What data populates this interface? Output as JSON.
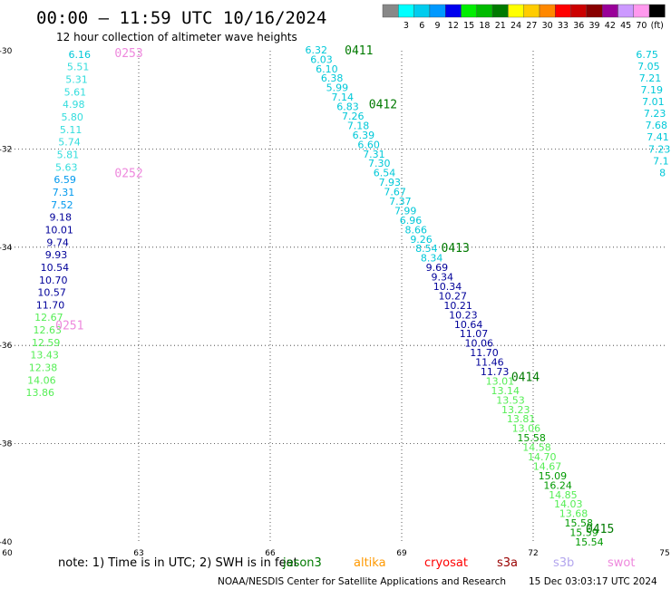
{
  "header": {
    "title": "00:00 – 11:59 UTC 10/16/2024",
    "subtitle": "12 hour collection of altimeter wave heights"
  },
  "footer": {
    "note": "note: 1) Time is in UTC; 2) SWH is in feet",
    "credit": "NOAA/NESDIS Center for Satellite Applications and Research",
    "generated": "15 Dec 03:03:17 UTC 2024"
  },
  "satellites": [
    {
      "name": "jason3",
      "color": "#007a00"
    },
    {
      "name": "altika",
      "color": "#ff9900"
    },
    {
      "name": "cryosat",
      "color": "#ff0000"
    },
    {
      "name": "s3a",
      "color": "#990000"
    },
    {
      "name": "s3b",
      "color": "#b3a6ee"
    },
    {
      "name": "swot",
      "color": "#ee88dd"
    }
  ],
  "chart_data": {
    "type": "scatter",
    "xlim": [
      60,
      75
    ],
    "ylim": [
      -40,
      -30
    ],
    "x_ticks": [
      "60",
      "63",
      "66",
      "69",
      "72",
      "75"
    ],
    "y_ticks": [
      "-30",
      "-32",
      "-34",
      "-36",
      "-38",
      "-40"
    ],
    "grid": true,
    "legend": {
      "placement": "top-right",
      "unit": "(ft)",
      "bins": [
        {
          "label": "",
          "color": "#888888"
        },
        {
          "label": "3",
          "color": "#00ffff"
        },
        {
          "label": "6",
          "color": "#00ccee"
        },
        {
          "label": "9",
          "color": "#0099ff"
        },
        {
          "label": "12",
          "color": "#0000ee"
        },
        {
          "label": "15",
          "color": "#00ee00"
        },
        {
          "label": "18",
          "color": "#00bb00"
        },
        {
          "label": "21",
          "color": "#007a00"
        },
        {
          "label": "24",
          "color": "#ffff00"
        },
        {
          "label": "27",
          "color": "#ffcc00"
        },
        {
          "label": "30",
          "color": "#ff8800"
        },
        {
          "label": "33",
          "color": "#ff0000"
        },
        {
          "label": "36",
          "color": "#cc0000"
        },
        {
          "label": "39",
          "color": "#880000"
        },
        {
          "label": "42",
          "color": "#990099"
        },
        {
          "label": "45",
          "color": "#cc99ff"
        },
        {
          "label": "70",
          "color": "#ff99ee"
        },
        {
          "label": "",
          "color": "#000000"
        }
      ]
    },
    "time_labels": [
      {
        "text": "0253",
        "lon": 62.45,
        "lat": -30.04,
        "color": "#ee88dd"
      },
      {
        "text": "0252",
        "lon": 62.45,
        "lat": -32.48,
        "color": "#ee88dd"
      },
      {
        "text": "0251",
        "lon": 61.1,
        "lat": -35.58,
        "color": "#ee88dd"
      },
      {
        "text": "0411",
        "lon": 67.7,
        "lat": -29.98,
        "color": "#007a00"
      },
      {
        "text": "0412",
        "lon": 68.25,
        "lat": -31.08,
        "color": "#007a00"
      },
      {
        "text": "0413",
        "lon": 69.9,
        "lat": -34.0,
        "color": "#007a00"
      },
      {
        "text": "0414",
        "lon": 71.5,
        "lat": -36.63,
        "color": "#007a00"
      },
      {
        "text": "0415",
        "lon": 73.2,
        "lat": -39.72,
        "color": "#007a00"
      }
    ],
    "series": [
      {
        "name": "0253",
        "color": "#00ccdd",
        "lon_start": 61.65,
        "lat_start": -30.07,
        "lon_end": 60.75,
        "lat_end": -36.96,
        "values": [
          "6.16",
          "5.51",
          "5.31",
          "5.61",
          "4.98",
          "5.80",
          "5.11",
          "5.74",
          "5.81",
          "5.63",
          "6.59",
          "7.31",
          "7.52",
          "9.18",
          "10.01",
          "9.74",
          "9.93",
          "10.54",
          "10.70",
          "10.57",
          "11.70",
          "12.67",
          "12.63",
          "12.59",
          "13.43",
          "12.38",
          "14.06",
          "13.86"
        ],
        "colors": [
          "c",
          "l",
          "l",
          "l",
          "l",
          "l",
          "l",
          "l",
          "l",
          "l",
          "b",
          "b",
          "b",
          "n",
          "n",
          "n",
          "n",
          "n",
          "n",
          "n",
          "n",
          "g",
          "g",
          "g",
          "g",
          "g",
          "g",
          "g"
        ]
      },
      {
        "name": "0411",
        "color": "#00aadd",
        "lon_start": 67.05,
        "lat_start": -29.98,
        "lon_end": 73.28,
        "lat_end": -40.0,
        "values": [
          "6.32",
          "6.03",
          "6.10",
          "6.38",
          "5.99",
          "7.14",
          "6.83",
          "7.26",
          "7.18",
          "6.39",
          "6.60",
          "7.31",
          "7.30",
          "6.54",
          "7.93",
          "7.67",
          "7.37",
          "7.99",
          "6.96",
          "8.66",
          "9.26",
          "8.54",
          "8.34",
          "9.69",
          "9.34",
          "10.34",
          "10.27",
          "10.21",
          "10.23",
          "10.64",
          "11.07",
          "10.06",
          "11.70",
          "11.46",
          "11.73",
          "13.01",
          "13.14",
          "13.53",
          "13.23",
          "13.81",
          "13.06",
          "15.58",
          "14.58",
          "14.70",
          "14.67",
          "15.09",
          "16.24",
          "14.85",
          "14.03",
          "13.68",
          "15.58",
          "15.59",
          "15.54"
        ],
        "colors": [
          "c",
          "c",
          "c",
          "c",
          "c",
          "c",
          "c",
          "c",
          "c",
          "c",
          "c",
          "c",
          "c",
          "c",
          "c",
          "c",
          "c",
          "c",
          "c",
          "c",
          "c",
          "c",
          "c",
          "n",
          "n",
          "n",
          "n",
          "n",
          "n",
          "n",
          "n",
          "n",
          "n",
          "n",
          "n",
          "g",
          "g",
          "g",
          "g",
          "g",
          "g",
          "d",
          "g",
          "g",
          "g",
          "d",
          "d",
          "g",
          "g",
          "g",
          "d",
          "d",
          "d"
        ]
      },
      {
        "name": "right-edge",
        "color": "#00ccdd",
        "lon_start": 74.6,
        "lat_start": -30.07,
        "lon_end": 74.95,
        "lat_end": -32.48,
        "values": [
          "6.75",
          "7.05",
          "7.21",
          "7.19",
          "7.01",
          "7.23",
          "7.68",
          "7.41",
          "7.23",
          "7.1",
          "8"
        ],
        "colors": [
          "c",
          "c",
          "c",
          "c",
          "c",
          "c",
          "c",
          "c",
          "c",
          "c",
          "c"
        ]
      }
    ]
  }
}
